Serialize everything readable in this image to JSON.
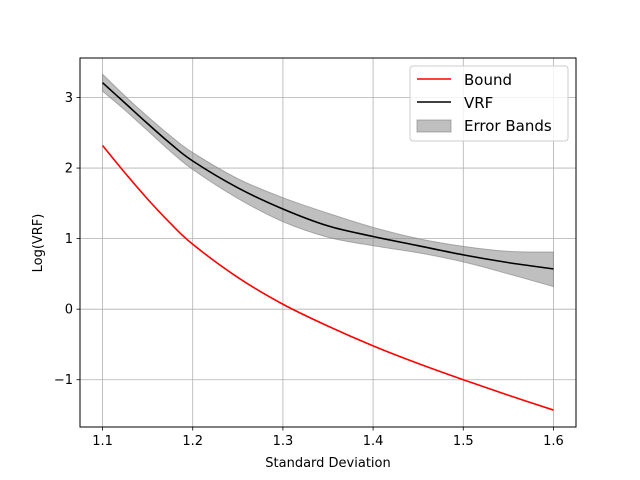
{
  "chart_data": {
    "type": "line",
    "xlabel": "Standard Deviation",
    "ylabel": "Log(VRF)",
    "xlim": [
      1.075,
      1.625
    ],
    "ylim": [
      -1.67,
      3.56
    ],
    "xticks": [
      1.1,
      1.2,
      1.3,
      1.4,
      1.5,
      1.6
    ],
    "xtick_labels": [
      "1.1",
      "1.2",
      "1.3",
      "1.4",
      "1.5",
      "1.6"
    ],
    "yticks": [
      -1,
      0,
      1,
      2,
      3
    ],
    "ytick_labels": [
      "−1",
      "0",
      "1",
      "2",
      "3"
    ],
    "grid": true,
    "legend_position": "upper right",
    "series": [
      {
        "name": "Bound",
        "color": "#ff0000",
        "x": [
          1.1,
          1.125,
          1.15,
          1.175,
          1.2,
          1.25,
          1.3,
          1.35,
          1.4,
          1.45,
          1.5,
          1.55,
          1.6
        ],
        "y": [
          2.32,
          1.93,
          1.56,
          1.22,
          0.92,
          0.45,
          0.07,
          -0.24,
          -0.52,
          -0.77,
          -1.0,
          -1.22,
          -1.43
        ]
      },
      {
        "name": "VRF",
        "color": "#000000",
        "x": [
          1.1,
          1.125,
          1.15,
          1.175,
          1.2,
          1.25,
          1.3,
          1.35,
          1.4,
          1.45,
          1.5,
          1.55,
          1.6
        ],
        "y": [
          3.21,
          2.92,
          2.63,
          2.35,
          2.1,
          1.72,
          1.42,
          1.18,
          1.03,
          0.9,
          0.77,
          0.66,
          0.57
        ]
      }
    ],
    "error_band": {
      "name": "Error Bands",
      "color": "#808080",
      "x": [
        1.1,
        1.125,
        1.15,
        1.175,
        1.2,
        1.25,
        1.3,
        1.35,
        1.4,
        1.45,
        1.5,
        1.55,
        1.6
      ],
      "upper": [
        3.33,
        3.02,
        2.73,
        2.46,
        2.22,
        1.85,
        1.58,
        1.36,
        1.16,
        1.0,
        0.89,
        0.82,
        0.81
      ],
      "lower": [
        3.09,
        2.82,
        2.53,
        2.24,
        1.98,
        1.57,
        1.24,
        1.02,
        0.9,
        0.8,
        0.67,
        0.5,
        0.32
      ]
    }
  }
}
